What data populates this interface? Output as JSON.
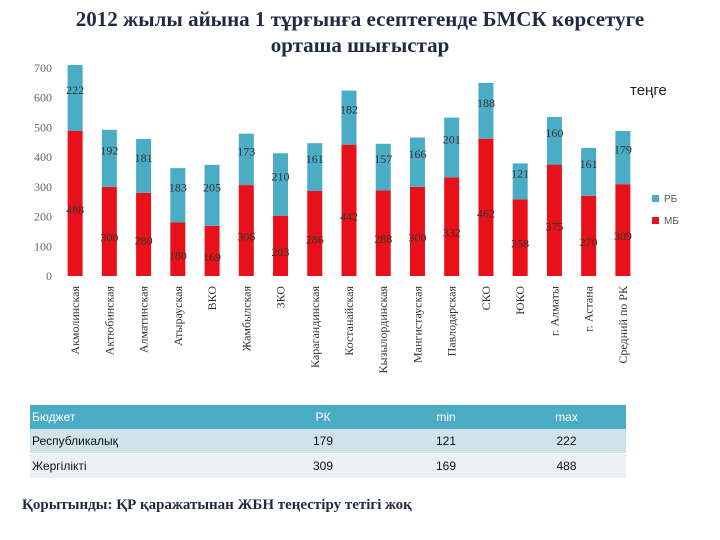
{
  "title_line1": "2012 жылы айына 1 тұрғынға есептегенде БМСК көрсетуге",
  "title_line2": "орташа шығыстар",
  "unit": "теңге",
  "chart_data": {
    "type": "bar",
    "stacked": true,
    "categories": [
      "Акмолинская",
      "Актюбинская",
      "Алматинская",
      "Атырауская",
      "ВКО",
      "Жамбылская",
      "ЗКО",
      "Карагандинская",
      "Костанайская",
      "Кызылординская",
      "Мангистауская",
      "Павлодарская",
      "СКО",
      "ЮКО",
      "г. Алматы",
      "г. Астана",
      "Средний по РК"
    ],
    "series": [
      {
        "name": "МБ",
        "color": "#e8111a",
        "values": [
          488,
          300,
          280,
          180,
          169,
          306,
          203,
          286,
          442,
          288,
          300,
          332,
          462,
          258,
          375,
          270,
          309
        ]
      },
      {
        "name": "РБ",
        "color": "#4bacc6",
        "values": [
          222,
          192,
          181,
          183,
          205,
          173,
          210,
          161,
          182,
          157,
          166,
          201,
          188,
          121,
          160,
          161,
          179
        ]
      }
    ],
    "ylim": [
      0,
      700
    ],
    "yticks": [
      "0",
      "100",
      "200",
      "300",
      "400",
      "500",
      "600",
      "700"
    ],
    "legend_position": "right",
    "grid": false
  },
  "table": {
    "headers": [
      "Бюджет",
      "РК",
      "min",
      "max"
    ],
    "rows": [
      [
        "Республикалық",
        "179",
        "121",
        "222"
      ],
      [
        "Жергілікті",
        "309",
        "169",
        "488"
      ]
    ]
  },
  "conclusion": "Қорытынды: ҚР қаражатынан ЖБН теңестіру тетігі жоқ"
}
